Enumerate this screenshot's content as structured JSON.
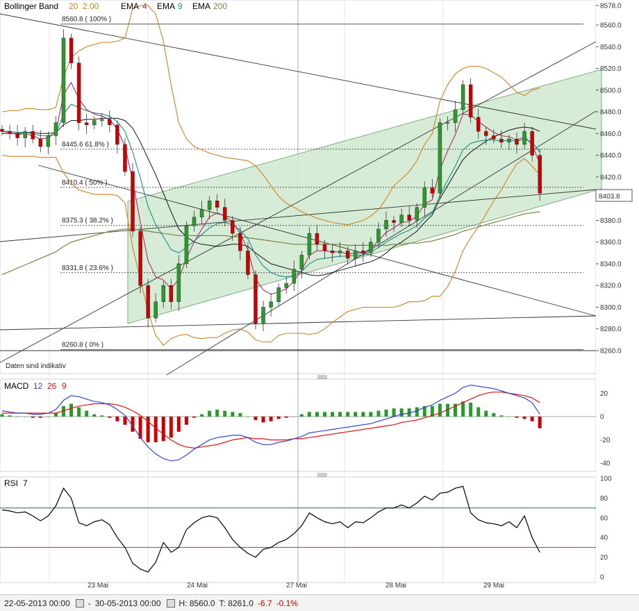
{
  "chart_data": {
    "type": "candlestick",
    "x_labels": [
      "23 Mai",
      "24 Mai",
      "27 Mai",
      "28 Mai",
      "29 Mai"
    ],
    "price_axis": {
      "min": 8260,
      "max": 8578,
      "ticks": [
        8260,
        8280,
        8300,
        8320,
        8340,
        8360,
        8380,
        8400,
        8420,
        8440,
        8460,
        8480,
        8500,
        8520,
        8540,
        8560,
        8578
      ],
      "tick_labels": [
        "8260.0",
        "8280.0",
        "8300.0",
        "8320.0",
        "8340.0",
        "8360.0",
        "8380.0",
        "8400.0",
        "8420.0",
        "8440.0",
        "8460.0",
        "8480.0",
        "8500.0",
        "8520.0",
        "8540.0",
        "8560.0",
        "8578.0"
      ]
    },
    "current_price": "8403.8",
    "fibonacci": [
      {
        "label": "8560.8 ( 100% )",
        "value": 8560.8
      },
      {
        "label": "8445.6  61.8% )",
        "value": 8445.6
      },
      {
        "label": "8410.4 ( 50% )",
        "value": 8410.4
      },
      {
        "label": "8375.3 ( 38.2% )",
        "value": 8375.3
      },
      {
        "label": "8331.8 ( 23.6% )",
        "value": 8331.8
      },
      {
        "label": "8260.8 ( 0% )",
        "value": 8260.8
      }
    ],
    "price_close": [
      8462,
      8460,
      8456,
      8462,
      8455,
      8448,
      8458,
      8470,
      8548,
      8525,
      8470,
      8468,
      8472,
      8473,
      8468,
      8450,
      8425,
      8370,
      8320,
      8290,
      8305,
      8320,
      8305,
      8340,
      8375,
      8383,
      8390,
      8398,
      8392,
      8380,
      8368,
      8352,
      8330,
      8285,
      8300,
      8305,
      8318,
      8322,
      8335,
      8348,
      8368,
      8358,
      8352,
      8350,
      8352,
      8345,
      8352,
      8350,
      8360,
      8372,
      8380,
      8378,
      8385,
      8380,
      8392,
      8410,
      8405,
      8470,
      8470,
      8482,
      8505,
      8475,
      8462,
      8458,
      8455,
      8452,
      8455,
      8450,
      8462,
      8440,
      8405
    ],
    "ema4": [
      8462,
      8461,
      8459,
      8460,
      8458,
      8455,
      8456,
      8461,
      8496,
      8507,
      8492,
      8482,
      8478,
      8476,
      8473,
      8464,
      8448,
      8417,
      8378,
      8343,
      8328,
      8325,
      8317,
      8326,
      8345,
      8360,
      8372,
      8383,
      8387,
      8384,
      8378,
      8368,
      8353,
      8326,
      8316,
      8312,
      8314,
      8317,
      8324,
      8334,
      8348,
      8352,
      8352,
      8351,
      8351,
      8349,
      8350,
      8350,
      8354,
      8361,
      8369,
      8373,
      8378,
      8379,
      8384,
      8395,
      8399,
      8427,
      8444,
      8459,
      8478,
      8477,
      8471,
      8466,
      8461,
      8458,
      8457,
      8454,
      8457,
      8450,
      8432
    ],
    "ema9": [
      8462,
      8462,
      8461,
      8461,
      8460,
      8458,
      8458,
      8460,
      8478,
      8487,
      8484,
      8481,
      8479,
      8478,
      8476,
      8471,
      8462,
      8443,
      8419,
      8393,
      8376,
      8365,
      8353,
      8350,
      8355,
      8361,
      8367,
      8373,
      8377,
      8378,
      8376,
      8371,
      8363,
      8348,
      8338,
      8332,
      8329,
      8328,
      8329,
      8333,
      8340,
      8344,
      8345,
      8346,
      8347,
      8347,
      8348,
      8348,
      8351,
      8355,
      8360,
      8364,
      8368,
      8371,
      8375,
      8382,
      8387,
      8403,
      8417,
      8430,
      8445,
      8451,
      8453,
      8454,
      8454,
      8453,
      8454,
      8453,
      8455,
      8452,
      8443
    ],
    "ema200": [
      8330,
      8333,
      8336,
      8339,
      8342,
      8345,
      8348,
      8351,
      8356,
      8360,
      8362,
      8364,
      8366,
      8368,
      8370,
      8371,
      8372,
      8372,
      8371,
      8370,
      8369,
      8368,
      8367,
      8366,
      8366,
      8366,
      8366,
      8366,
      8366,
      8366,
      8365,
      8365,
      8364,
      8363,
      8362,
      8361,
      8360,
      8359,
      8358,
      8358,
      8358,
      8358,
      8358,
      8358,
      8358,
      8357,
      8357,
      8357,
      8357,
      8357,
      8357,
      8358,
      8358,
      8359,
      8359,
      8360,
      8361,
      8363,
      8365,
      8367,
      8370,
      8372,
      8374,
      8376,
      8378,
      8380,
      8382,
      8384,
      8386,
      8387,
      8388
    ],
    "bb_mid": [
      8460,
      8460,
      8460,
      8461,
      8461,
      8460,
      8460,
      8461,
      8468,
      8472,
      8472,
      8473,
      8473,
      8474,
      8474,
      8474,
      8472,
      8465,
      8452,
      8437,
      8422,
      8405,
      8388,
      8372,
      8365,
      8360,
      8358,
      8357,
      8356,
      8357,
      8358,
      8358,
      8356,
      8350,
      8345,
      8340,
      8338,
      8336,
      8334,
      8332,
      8330,
      8329,
      8330,
      8332,
      8334,
      8336,
      8338,
      8340,
      8342,
      8345,
      8350,
      8356,
      8360,
      8365,
      8370,
      8378,
      8385,
      8400,
      8412,
      8424,
      8436,
      8443,
      8448,
      8453,
      8457,
      8460,
      8463,
      8465,
      8466,
      8465,
      8462
    ],
    "bb_upper": [
      8480,
      8481,
      8481,
      8483,
      8483,
      8482,
      8482,
      8484,
      8512,
      8530,
      8536,
      8540,
      8542,
      8544,
      8544,
      8545,
      8548,
      8575,
      8578,
      8578,
      8570,
      8545,
      8505,
      8470,
      8455,
      8448,
      8445,
      8442,
      8440,
      8438,
      8437,
      8436,
      8435,
      8430,
      8422,
      8412,
      8402,
      8396,
      8392,
      8388,
      8385,
      8382,
      8380,
      8378,
      8377,
      8376,
      8378,
      8380,
      8384,
      8390,
      8400,
      8412,
      8418,
      8425,
      8435,
      8450,
      8460,
      8490,
      8505,
      8515,
      8520,
      8522,
      8522,
      8520,
      8516,
      8512,
      8505,
      8498,
      8495,
      8500,
      8502
    ],
    "bb_lower": [
      8440,
      8439,
      8439,
      8439,
      8439,
      8438,
      8438,
      8438,
      8424,
      8414,
      8408,
      8406,
      8404,
      8404,
      8404,
      8403,
      8396,
      8355,
      8326,
      8296,
      8274,
      8265,
      8271,
      8274,
      8275,
      8272,
      8271,
      8272,
      8272,
      8276,
      8279,
      8280,
      8277,
      8270,
      8268,
      8268,
      8274,
      8276,
      8276,
      8276,
      8275,
      8276,
      8280,
      8286,
      8291,
      8296,
      8298,
      8300,
      8300,
      8300,
      8300,
      8300,
      8302,
      8305,
      8305,
      8306,
      8310,
      8310,
      8319,
      8333,
      8352,
      8364,
      8374,
      8386,
      8398,
      8408,
      8421,
      8432,
      8437,
      8430,
      8422
    ],
    "macd": [
      5,
      4,
      3,
      3,
      2,
      2,
      3,
      6,
      14,
      18,
      17,
      15,
      13,
      12,
      10,
      6,
      1,
      -8,
      -18,
      -26,
      -32,
      -36,
      -38,
      -37,
      -33,
      -28,
      -24,
      -20,
      -18,
      -17,
      -16,
      -16,
      -18,
      -22,
      -24,
      -24,
      -22,
      -21,
      -19,
      -17,
      -14,
      -13,
      -12,
      -11,
      -10,
      -9,
      -8,
      -7,
      -6,
      -4,
      -2,
      0,
      2,
      3,
      5,
      8,
      10,
      14,
      17,
      20,
      25,
      27,
      26,
      25,
      24,
      22,
      20,
      18,
      16,
      12,
      2
    ],
    "macd_signal": [
      3,
      3,
      3,
      3,
      3,
      3,
      3,
      3,
      5,
      7,
      9,
      10,
      11,
      11,
      11,
      10,
      8,
      5,
      1,
      -4,
      -10,
      -15,
      -20,
      -24,
      -26,
      -27,
      -26,
      -25,
      -24,
      -22,
      -20,
      -19,
      -18,
      -19,
      -19,
      -20,
      -20,
      -20,
      -19,
      -19,
      -18,
      -17,
      -16,
      -15,
      -14,
      -13,
      -12,
      -11,
      -10,
      -9,
      -8,
      -7,
      -5,
      -4,
      -3,
      -1,
      1,
      3,
      6,
      9,
      12,
      15,
      18,
      20,
      21,
      21,
      20,
      19,
      18,
      16,
      12
    ],
    "macd_axis": {
      "min": -45,
      "max": 35,
      "ticks": [
        20,
        0,
        -20,
        -40
      ],
      "tick_labels": [
        "20",
        "0",
        "-20",
        "-40"
      ]
    },
    "rsi": [
      68,
      67,
      65,
      66,
      62,
      57,
      62,
      72,
      90,
      80,
      55,
      52,
      56,
      58,
      53,
      40,
      30,
      14,
      8,
      5,
      15,
      35,
      25,
      30,
      48,
      55,
      60,
      62,
      60,
      50,
      38,
      30,
      24,
      20,
      28,
      30,
      35,
      38,
      44,
      52,
      65,
      60,
      56,
      54,
      56,
      50,
      56,
      55,
      60,
      66,
      70,
      70,
      73,
      70,
      75,
      82,
      78,
      85,
      86,
      90,
      92,
      65,
      58,
      55,
      54,
      52,
      56,
      50,
      62,
      40,
      25
    ],
    "rsi_axis": {
      "min": 0,
      "max": 100,
      "ticks": [
        0,
        20,
        40,
        60,
        80,
        100
      ],
      "tick_labels": [
        "0",
        "20",
        "40",
        "60",
        "80",
        "100"
      ],
      "levels": [
        30,
        70
      ]
    }
  },
  "legend": {
    "bollinger": {
      "label": "Bollinger Band",
      "p1": "20",
      "p2": "2.00"
    },
    "ema_a": {
      "label": "EMA",
      "p": "4"
    },
    "ema_b": {
      "label": "EMA",
      "p": "9"
    },
    "ema_c": {
      "label": "EMA",
      "p": "200"
    },
    "macd": {
      "label": "MACD",
      "p1": "12",
      "p2": "26",
      "p3": "9"
    },
    "rsi": {
      "label": "RSI",
      "p": "7"
    }
  },
  "disclaimer": "Daten sind indikativ",
  "footer": {
    "from": "22-05-2013 00:00",
    "dash": "-",
    "to": "30-05-2013 00:00",
    "high": "H: 8560.0",
    "low": "T: 8261.0",
    "change": "-6.7",
    "change_pct": "-0.1%"
  },
  "colors": {
    "up": "#2a9a2a",
    "down": "#cc0000",
    "bollinger": "#d2801e",
    "ema4": "#b0286a",
    "ema9": "#1a8a8a",
    "ema200": "#808040",
    "macd": "#3344cc",
    "signal": "#dd1111",
    "rsi": "#000000",
    "channel_fill": "#cfe9cf",
    "rsi70": "#1f6f5f",
    "rsi30": "#c82828"
  }
}
